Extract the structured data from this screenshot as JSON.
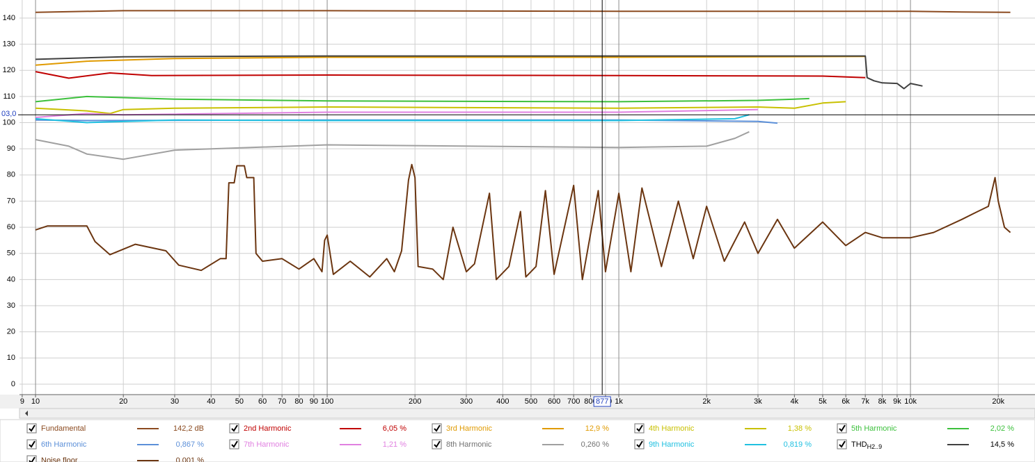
{
  "chart_data": {
    "type": "line",
    "xscale": "log",
    "grid": true,
    "xlim": [
      8.81,
      26730
    ],
    "ylim": [
      -4,
      146.9
    ],
    "xticks": [
      9,
      10,
      20,
      30,
      40,
      50,
      60,
      70,
      80,
      90,
      100,
      200,
      300,
      400,
      500,
      600,
      700,
      800,
      900,
      {
        "value": 1000,
        "label": "1k"
      },
      {
        "value": 2000,
        "label": "2k"
      },
      {
        "value": 3000,
        "label": "3k"
      },
      {
        "value": 4000,
        "label": "4k"
      },
      {
        "value": 5000,
        "label": "5k"
      },
      {
        "value": 6000,
        "label": "6k"
      },
      {
        "value": 7000,
        "label": "7k"
      },
      {
        "value": 8000,
        "label": "8k"
      },
      {
        "value": 9000,
        "label": "9k"
      },
      {
        "value": 10000,
        "label": "10k"
      },
      {
        "value": 20000,
        "label": "20k"
      }
    ],
    "yticks": [
      0,
      10,
      20,
      30,
      40,
      50,
      60,
      70,
      80,
      90,
      100,
      110,
      120,
      130,
      140
    ],
    "cursor": {
      "x": {
        "value": 877,
        "label": "877"
      },
      "y": {
        "value": 103.0,
        "label": "03,0"
      }
    },
    "series": [
      {
        "name": "Fundamental",
        "color": "#8b4a1f",
        "reading": {
          "value": 142.2,
          "label": "142,2 dB"
        },
        "x": [
          10,
          20,
          100,
          1000,
          10000,
          15000,
          22000
        ],
        "values": [
          142.2,
          142.8,
          142.8,
          142.6,
          142.6,
          142.3,
          142.2
        ]
      },
      {
        "name": "2nd Harmonic",
        "color": "#c00000",
        "reading": {
          "value": 6.05,
          "label": "6,05 %"
        },
        "x": [
          10,
          13,
          18,
          25,
          100,
          1000,
          5000,
          7000
        ],
        "values": [
          119.5,
          117,
          119,
          118,
          118.2,
          118,
          117.8,
          117.2
        ]
      },
      {
        "name": "3rd Harmonic",
        "color": "#e09a00",
        "reading": {
          "value": 12.9,
          "label": "12,9 %"
        },
        "x": [
          10,
          15,
          30,
          100,
          1000,
          7000
        ],
        "values": [
          122,
          123.5,
          124.5,
          125,
          125,
          125.3
        ]
      },
      {
        "name": "4th Harmonic",
        "color": "#c8c000",
        "reading": {
          "value": 1.38,
          "label": "1,38 %"
        },
        "x": [
          10,
          15,
          18,
          20,
          30,
          100,
          1000,
          3000,
          4000,
          5000,
          6000
        ],
        "values": [
          105.5,
          104.5,
          103.5,
          105,
          105.5,
          106,
          105.5,
          106,
          105.5,
          107.5,
          108
        ]
      },
      {
        "name": "5th Harmonic",
        "color": "#3cc03c",
        "reading": {
          "value": 2.02,
          "label": "2,02 %"
        },
        "x": [
          10,
          15,
          30,
          100,
          1000,
          3000,
          4000,
          4500
        ],
        "values": [
          108,
          110,
          109,
          108.3,
          108,
          108.5,
          109,
          109.2
        ]
      },
      {
        "name": "6th Harmonic",
        "color": "#5b8fd8",
        "reading": {
          "value": 0.867,
          "label": "0,867 %"
        },
        "x": [
          10,
          15,
          100,
          1000,
          3000,
          3500
        ],
        "values": [
          101,
          100.8,
          101,
          101,
          100.5,
          99.8
        ]
      },
      {
        "name": "7th Harmonic",
        "color": "#e080e0",
        "reading": {
          "value": 1.21,
          "label": "1,21 %"
        },
        "x": [
          10,
          15,
          20,
          100,
          1000,
          3000
        ],
        "values": [
          102,
          103.5,
          103,
          104,
          104,
          105
        ]
      },
      {
        "name": "8th Harmonic",
        "color": "#a0a0a0",
        "reading": {
          "value": 0.26,
          "label": "0,260 %"
        },
        "x": [
          10,
          13,
          15,
          20,
          30,
          100,
          1000,
          2000,
          2500,
          2800
        ],
        "values": [
          93.5,
          91,
          88,
          86,
          89.5,
          91.5,
          90.5,
          91,
          94,
          96.5
        ]
      },
      {
        "name": "9th Harmonic",
        "color": "#20c0e0",
        "reading": {
          "value": 0.819,
          "label": "0,819 %"
        },
        "x": [
          10,
          15,
          30,
          100,
          1000,
          2500,
          2800
        ],
        "values": [
          101.5,
          100,
          101,
          100.8,
          100.8,
          101.5,
          103
        ]
      },
      {
        "name": "THD",
        "name_sub": "H2..9",
        "color": "#404040",
        "reading": {
          "value": 14.5,
          "label": "14,5 %"
        },
        "x": [
          10,
          20,
          100,
          1000,
          7000,
          7100,
          7500,
          8000,
          9000,
          9500,
          10000,
          11000
        ],
        "values": [
          124.2,
          125.2,
          125.5,
          125.5,
          125.5,
          117.2,
          116,
          115.2,
          115,
          113,
          115,
          114
        ]
      },
      {
        "name": "Noise floor",
        "color": "#6b3510",
        "reading": {
          "value": 0.001,
          "label": "0,001 %"
        },
        "x": [
          10,
          11,
          15,
          16,
          18,
          22,
          28,
          31,
          37,
          43,
          45,
          46,
          48,
          49,
          52,
          53,
          56,
          57,
          60,
          70,
          80,
          90,
          96,
          98,
          100,
          105,
          120,
          140,
          160,
          170,
          180,
          190,
          195,
          200,
          205,
          230,
          250,
          270,
          300,
          320,
          360,
          380,
          420,
          460,
          480,
          520,
          560,
          600,
          700,
          750,
          850,
          900,
          1000,
          1100,
          1200,
          1400,
          1600,
          1800,
          2000,
          2300,
          2700,
          3000,
          3500,
          4000,
          5000,
          6000,
          7000,
          8000,
          10000,
          12000,
          15000,
          17000,
          18500,
          19500,
          20000,
          21000,
          22000
        ],
        "values": [
          59,
          60.5,
          60.5,
          54.5,
          49.5,
          53.5,
          51,
          45.5,
          43.5,
          48,
          48,
          77,
          77,
          83.5,
          83.5,
          79,
          79,
          50,
          47,
          48,
          44,
          48,
          43,
          55,
          57,
          42,
          47,
          41,
          48,
          43,
          51,
          78,
          84,
          79,
          45,
          44,
          40,
          60,
          43,
          46,
          73,
          40,
          45,
          66,
          41,
          45,
          74,
          42,
          76,
          40,
          74,
          43,
          73,
          43,
          75,
          45,
          70,
          48,
          68,
          47,
          62,
          50,
          63,
          52,
          62,
          53,
          58,
          56,
          56,
          58,
          63,
          66,
          68,
          79,
          70,
          60,
          58
        ]
      }
    ]
  }
}
